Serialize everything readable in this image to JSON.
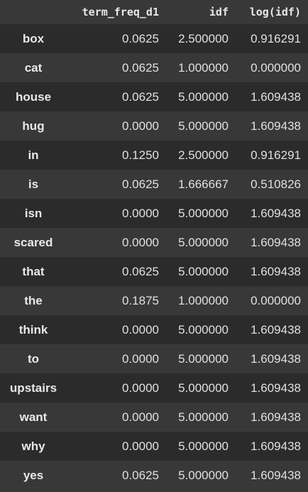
{
  "table": {
    "columns": [
      "",
      "term_freq_d1",
      "idf",
      "log(idf)"
    ],
    "rows": [
      {
        "index": "box",
        "term_freq_d1": "0.0625",
        "idf": "2.500000",
        "log_idf": "0.916291"
      },
      {
        "index": "cat",
        "term_freq_d1": "0.0625",
        "idf": "1.000000",
        "log_idf": "0.000000"
      },
      {
        "index": "house",
        "term_freq_d1": "0.0625",
        "idf": "5.000000",
        "log_idf": "1.609438"
      },
      {
        "index": "hug",
        "term_freq_d1": "0.0000",
        "idf": "5.000000",
        "log_idf": "1.609438"
      },
      {
        "index": "in",
        "term_freq_d1": "0.1250",
        "idf": "2.500000",
        "log_idf": "0.916291"
      },
      {
        "index": "is",
        "term_freq_d1": "0.0625",
        "idf": "1.666667",
        "log_idf": "0.510826"
      },
      {
        "index": "isn",
        "term_freq_d1": "0.0000",
        "idf": "5.000000",
        "log_idf": "1.609438"
      },
      {
        "index": "scared",
        "term_freq_d1": "0.0000",
        "idf": "5.000000",
        "log_idf": "1.609438"
      },
      {
        "index": "that",
        "term_freq_d1": "0.0625",
        "idf": "5.000000",
        "log_idf": "1.609438"
      },
      {
        "index": "the",
        "term_freq_d1": "0.1875",
        "idf": "1.000000",
        "log_idf": "0.000000"
      },
      {
        "index": "think",
        "term_freq_d1": "0.0000",
        "idf": "5.000000",
        "log_idf": "1.609438"
      },
      {
        "index": "to",
        "term_freq_d1": "0.0000",
        "idf": "5.000000",
        "log_idf": "1.609438"
      },
      {
        "index": "upstairs",
        "term_freq_d1": "0.0000",
        "idf": "5.000000",
        "log_idf": "1.609438"
      },
      {
        "index": "want",
        "term_freq_d1": "0.0000",
        "idf": "5.000000",
        "log_idf": "1.609438"
      },
      {
        "index": "why",
        "term_freq_d1": "0.0000",
        "idf": "5.000000",
        "log_idf": "1.609438"
      },
      {
        "index": "yes",
        "term_freq_d1": "0.0625",
        "idf": "5.000000",
        "log_idf": "1.609438"
      }
    ]
  },
  "colors": {
    "background": "#383838",
    "row_odd": "#2b2b2b",
    "row_even": "#383838",
    "text": "#e6e6e6"
  }
}
